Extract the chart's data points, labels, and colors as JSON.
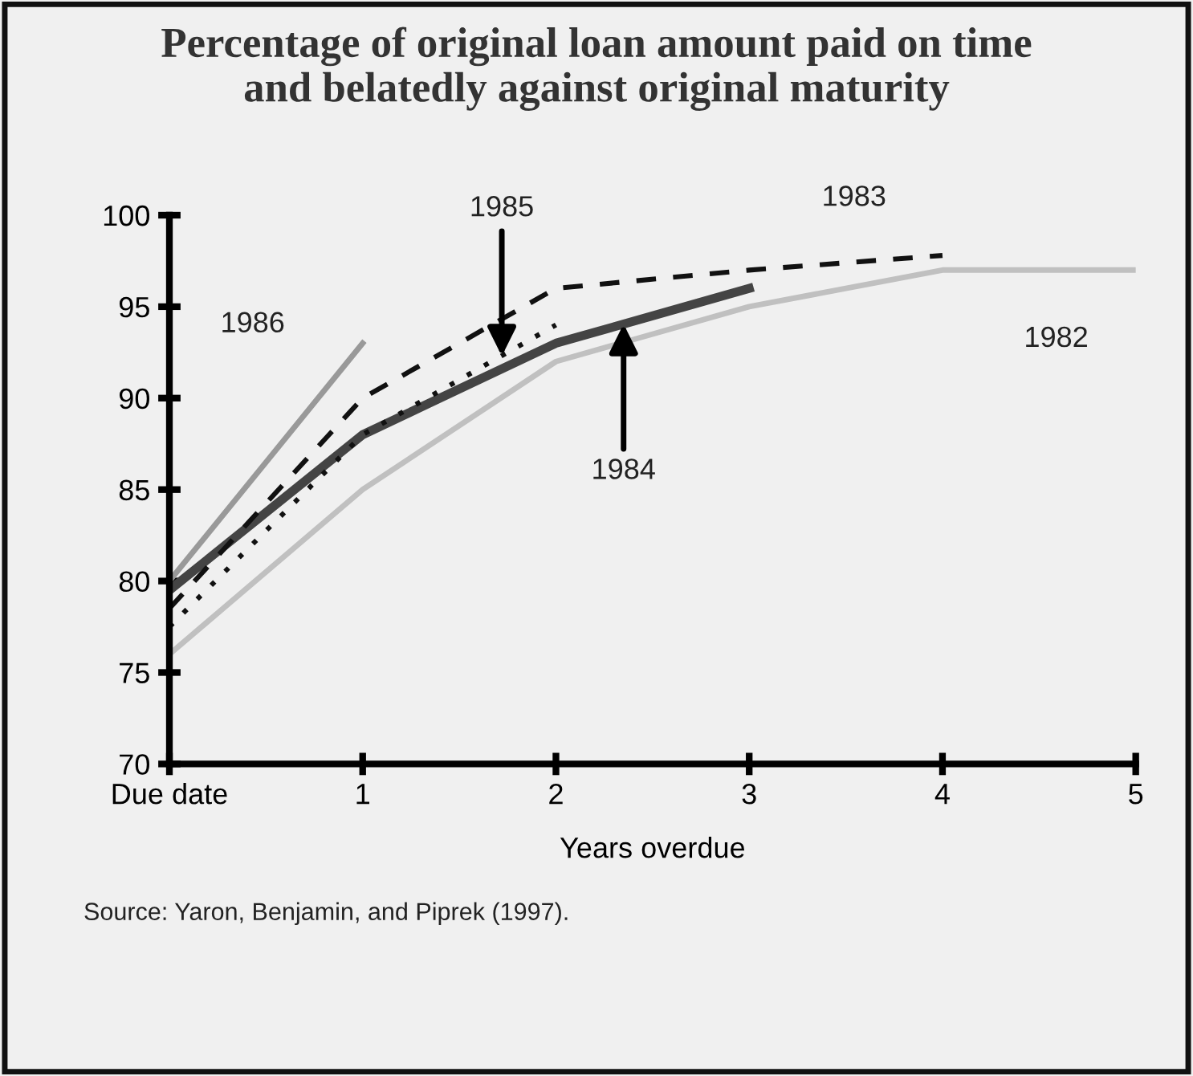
{
  "chart_data": {
    "type": "line",
    "title": "Percentage of original loan amount paid on time\nand belatedly against original maturity",
    "xlabel": "Years overdue",
    "xlim": [
      0,
      5
    ],
    "xticks": [
      {
        "value": 0,
        "label": "Due date"
      },
      1,
      2,
      3,
      4,
      5
    ],
    "ylim": [
      70,
      100
    ],
    "yticks": [
      70,
      75,
      80,
      85,
      90,
      95,
      100
    ],
    "grid": false,
    "series": [
      {
        "color": "#999999",
        "line_style": "solid",
        "x": [
          0,
          1
        ],
        "values": [
          80,
          93
        ]
      },
      {
        "color": "#444444",
        "line_style": "solid",
        "x": [
          0,
          1,
          2,
          3
        ],
        "values": [
          79.5,
          88,
          93,
          96
        ]
      },
      {
        "color": "#111111",
        "line_style": "dotted",
        "x": [
          0,
          1,
          2
        ],
        "values": [
          77.5,
          88,
          94
        ]
      },
      {
        "color": "#111111",
        "line_style": "dashed",
        "x": [
          0,
          1,
          2,
          3,
          4
        ],
        "values": [
          78.5,
          90,
          96,
          97,
          97.8
        ]
      },
      {
        "color": "#c0c0c0",
        "line_style": "solid",
        "x": [
          0,
          1,
          2,
          3,
          4,
          5
        ],
        "values": [
          76,
          85,
          92,
          95,
          97,
          97
        ]
      }
    ],
    "annotations": [
      {
        "text": "1986",
        "x": 0.95,
        "y": 92.3
      },
      {
        "text": "1985",
        "x": 1.72,
        "y": 92.3
      },
      {
        "text": "1984",
        "x": 2.35,
        "y": 94.05
      },
      {
        "text": "1983",
        "x": 3.6,
        "y": 97.5
      },
      {
        "text": "1982",
        "x": 4.3,
        "y": 97
      },
      "Source: Yaron, Benjamin, and Piprek (1997)."
    ]
  }
}
